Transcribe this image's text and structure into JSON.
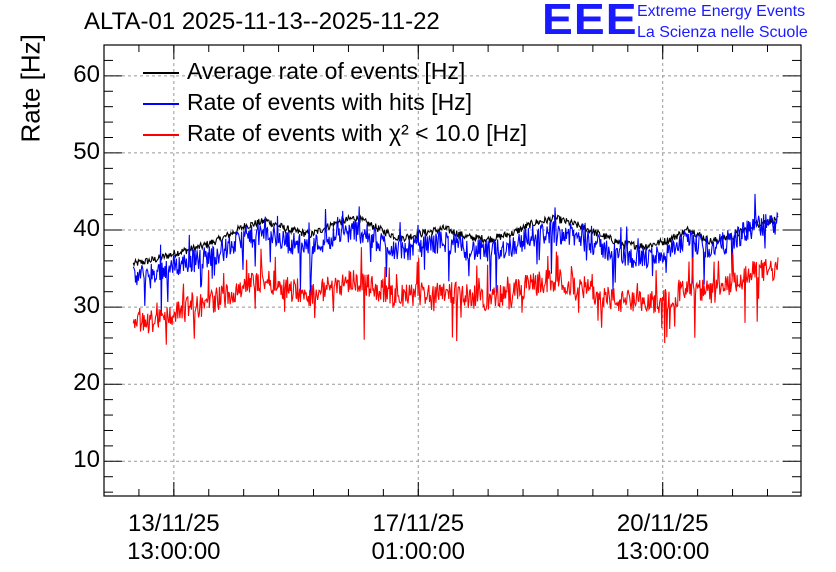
{
  "header": {
    "title": "ALTA-01 2025-11-13--2025-11-22",
    "logo_mark": "EEE",
    "logo_line1": "Extreme Energy Events",
    "logo_line2": "La Scienza nelle Scuole",
    "logo_color": "#1a1aff"
  },
  "chart_data": {
    "type": "line",
    "title": "ALTA-01 2025-11-13--2025-11-22",
    "xlabel": "",
    "ylabel": "Rate [Hz]",
    "ylim": [
      5.5,
      64
    ],
    "xlim_days": [
      0,
      9.98
    ],
    "grid": true,
    "legend_position": "top-left",
    "yticks": [
      "10",
      "20",
      "30",
      "40",
      "50",
      "60"
    ],
    "xticks": [
      {
        "date": "13/11/25",
        "time": "13:00:00",
        "day": 1.0
      },
      {
        "date": "17/11/25",
        "time": "01:00:00",
        "day": 4.5
      },
      {
        "date": "20/11/25",
        "time": "13:00:00",
        "day": 8.0
      }
    ],
    "x_start_day": 0.42,
    "x_end_day": 9.65,
    "series": [
      {
        "name": "Average rate of events [Hz]",
        "color": "#000000",
        "values": [
          35.6,
          36.2,
          37.1,
          37.8,
          38.9,
          40.5,
          41.2,
          40.0,
          39.4,
          40.8,
          41.6,
          40.2,
          38.9,
          39.6,
          40.2,
          39.1,
          38.8,
          39.5,
          40.9,
          41.5,
          40.6,
          39.4,
          38.2,
          37.9,
          38.6,
          40.1,
          38.5,
          39.2,
          40.8,
          41.4
        ]
      },
      {
        "name": "Rate of events with hits [Hz]",
        "color": "#0000ff",
        "values": [
          33.8,
          34.5,
          35.5,
          36.2,
          37.3,
          38.9,
          39.6,
          38.4,
          37.8,
          39.2,
          40.0,
          38.6,
          37.3,
          38.0,
          38.6,
          37.5,
          37.2,
          37.9,
          39.3,
          39.9,
          39.0,
          37.8,
          36.6,
          36.3,
          37.0,
          38.5,
          37.6,
          38.8,
          40.5,
          40.8
        ]
      },
      {
        "name": "Rate of events with χ² < 10.0 [Hz]",
        "color": "#ff0000",
        "values": [
          27.6,
          28.3,
          29.4,
          30.2,
          31.3,
          32.9,
          33.5,
          32.4,
          31.6,
          32.8,
          33.6,
          32.3,
          31.3,
          31.8,
          32.3,
          31.4,
          31.1,
          31.8,
          33.0,
          33.5,
          32.8,
          31.6,
          30.6,
          30.4,
          31.0,
          32.3,
          31.9,
          33.0,
          34.6,
          34.9
        ]
      }
    ]
  },
  "legend": {
    "items": [
      {
        "label": "Average rate of events [Hz]",
        "color": "#000000"
      },
      {
        "label": "Rate of events with hits [Hz]",
        "color": "#0000ff"
      },
      {
        "label": "Rate of events with χ² < 10.0 [Hz]",
        "color": "#ff0000"
      }
    ]
  }
}
